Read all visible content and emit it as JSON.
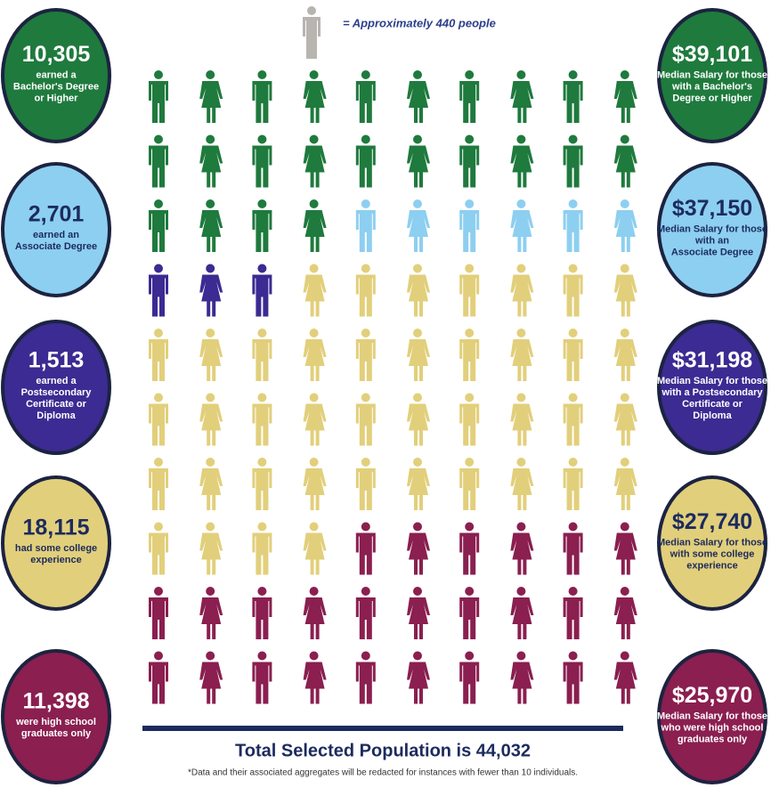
{
  "legend": "= Approximately 440 people",
  "groups": [
    {
      "count": "10,305",
      "label": [
        "earned a",
        "Bachelor's Degree",
        "or Higher"
      ],
      "salary": "$39,101",
      "salary_label": [
        "Median Salary for those",
        "with a Bachelor's",
        "Degree or Higher"
      ],
      "color": "#1f7a3d",
      "icons": 24
    },
    {
      "count": "2,701",
      "label": [
        "earned an",
        "Associate Degree"
      ],
      "salary": "$37,150",
      "salary_label": [
        "Median Salary for those",
        "with an",
        "Associate Degree"
      ],
      "color": "#8dcff0",
      "icons": 6
    },
    {
      "count": "1,513",
      "label": [
        "earned a",
        "Postsecondary",
        "Certificate or",
        "Diploma"
      ],
      "salary": "$31,198",
      "salary_label": [
        "Median Salary for those",
        "with a Postsecondary",
        "Certificate or",
        "Diploma"
      ],
      "color": "#3b2b92",
      "icons": 3
    },
    {
      "count": "18,115",
      "label": [
        "had some college",
        "experience"
      ],
      "salary": "$27,740",
      "salary_label": [
        "Median Salary for those",
        "with some college",
        "experience"
      ],
      "color": "#e2cf7b",
      "icons": 41
    },
    {
      "count": "11,398",
      "label": [
        "were high school",
        "graduates only"
      ],
      "salary": "$25,970",
      "salary_label": [
        "Median Salary for those",
        "who were high school",
        "graduates only"
      ],
      "color": "#8a1f50",
      "icons": 26
    }
  ],
  "total": "Total Selected Population is 44,032",
  "footnote": "*Data and their associated aggregates will be redacted for instances with fewer than 10 individuals."
}
